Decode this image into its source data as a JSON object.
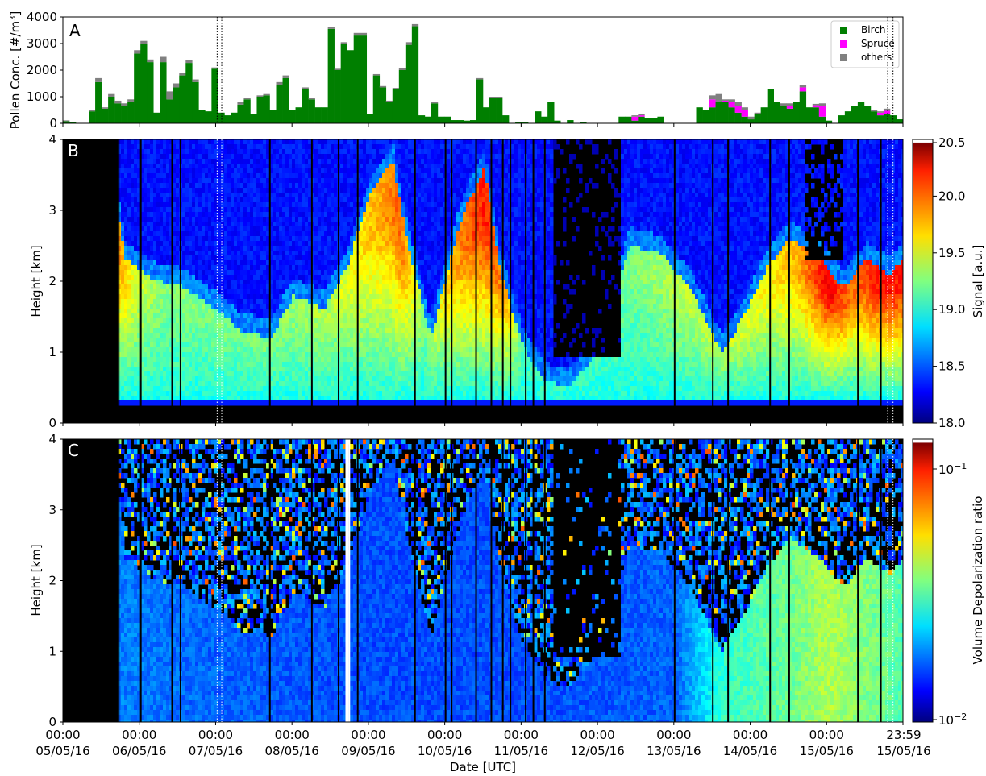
{
  "figure": {
    "xlabel": "Date [UTC]",
    "x_ticks": [
      {
        "time": "00:00",
        "date": "05/05/16"
      },
      {
        "time": "00:00",
        "date": "06/05/16"
      },
      {
        "time": "00:00",
        "date": "07/05/16"
      },
      {
        "time": "00:00",
        "date": "08/05/16"
      },
      {
        "time": "00:00",
        "date": "09/05/16"
      },
      {
        "time": "00:00",
        "date": "10/05/16"
      },
      {
        "time": "00:00",
        "date": "11/05/16"
      },
      {
        "time": "00:00",
        "date": "12/05/16"
      },
      {
        "time": "00:00",
        "date": "13/05/16"
      },
      {
        "time": "00:00",
        "date": "14/05/16"
      },
      {
        "time": "00:00",
        "date": "15/05/16"
      },
      {
        "time": "23:59",
        "date": "15/05/16"
      }
    ]
  },
  "chart_data": [
    {
      "panel_label": "A",
      "type": "bar",
      "stacked": true,
      "ylabel_text": "Pollen Conc. [#/m",
      "ylabel_sup": "3",
      "ylabel_end": "]",
      "ylim": [
        0,
        4000
      ],
      "y_ticks": [
        "0",
        "1000",
        "2000",
        "3000",
        "4000"
      ],
      "x_units": "days since 05/05/16 00:00 UTC",
      "bin_hours": 2,
      "colors": {
        "Birch": "#007f00",
        "Spruce": "#ff00ff",
        "others": "#808080"
      },
      "legend": {
        "placement": "top-right",
        "entries": [
          "Birch",
          "Spruce",
          "others"
        ]
      },
      "series": [
        {
          "name": "Birch",
          "values": [
            80,
            40,
            0,
            0,
            450,
            1550,
            550,
            1000,
            750,
            650,
            820,
            2620,
            3000,
            2300,
            400,
            2300,
            900,
            1350,
            1800,
            2270,
            1550,
            500,
            450,
            2050,
            400,
            300,
            400,
            700,
            900,
            350,
            1000,
            1050,
            500,
            1450,
            1700,
            500,
            600,
            1300,
            900,
            600,
            600,
            3550,
            2000,
            3000,
            2750,
            3300,
            3300,
            350,
            1800,
            1350,
            800,
            1280,
            2000,
            2950,
            3650,
            300,
            250,
            750,
            250,
            250,
            120,
            120,
            100,
            120,
            1650,
            600,
            950,
            950,
            300,
            0,
            60,
            60,
            0,
            450,
            250,
            800,
            100,
            0,
            120,
            0,
            50,
            0,
            0,
            0,
            0,
            0,
            250,
            250,
            100,
            250,
            200,
            200,
            250,
            0,
            0,
            0,
            0,
            0,
            600,
            500,
            600,
            800,
            800,
            600,
            400,
            250,
            150,
            350,
            600,
            1300,
            800,
            650,
            550,
            800,
            1200,
            600,
            600,
            250,
            100,
            0,
            300,
            450,
            650,
            800,
            650,
            450,
            300,
            350,
            300,
            150
          ]
        },
        {
          "name": "Spruce",
          "values": [
            0,
            0,
            0,
            0,
            0,
            0,
            0,
            0,
            0,
            0,
            0,
            0,
            0,
            0,
            0,
            0,
            0,
            0,
            0,
            0,
            0,
            0,
            0,
            0,
            0,
            0,
            0,
            0,
            0,
            0,
            0,
            0,
            0,
            0,
            0,
            0,
            0,
            0,
            0,
            0,
            0,
            0,
            0,
            0,
            0,
            0,
            0,
            0,
            0,
            0,
            0,
            0,
            0,
            0,
            0,
            0,
            0,
            0,
            0,
            0,
            0,
            0,
            0,
            0,
            0,
            0,
            0,
            0,
            0,
            0,
            0,
            0,
            0,
            0,
            0,
            0,
            0,
            0,
            0,
            0,
            0,
            0,
            0,
            0,
            0,
            0,
            0,
            0,
            150,
            50,
            0,
            0,
            0,
            0,
            0,
            0,
            0,
            0,
            0,
            0,
            300,
            0,
            50,
            200,
            250,
            250,
            0,
            0,
            0,
            0,
            0,
            0,
            100,
            0,
            150,
            0,
            80,
            400,
            0,
            0,
            0,
            0,
            0,
            0,
            0,
            0,
            100,
            120,
            0,
            0,
            0,
            100
          ]
        },
        {
          "name": "others",
          "values": [
            30,
            20,
            0,
            0,
            50,
            150,
            50,
            100,
            100,
            100,
            80,
            130,
            100,
            100,
            0,
            200,
            300,
            150,
            100,
            100,
            100,
            0,
            0,
            50,
            0,
            0,
            0,
            100,
            50,
            0,
            50,
            50,
            0,
            100,
            100,
            0,
            0,
            50,
            50,
            0,
            0,
            80,
            50,
            50,
            0,
            100,
            100,
            0,
            50,
            50,
            50,
            50,
            80,
            100,
            80,
            0,
            0,
            50,
            0,
            0,
            0,
            0,
            0,
            0,
            50,
            0,
            50,
            50,
            0,
            0,
            0,
            0,
            0,
            0,
            0,
            0,
            0,
            0,
            0,
            0,
            0,
            0,
            0,
            0,
            0,
            0,
            0,
            0,
            50,
            50,
            0,
            0,
            0,
            0,
            0,
            0,
            0,
            0,
            0,
            0,
            150,
            300,
            50,
            100,
            150,
            100,
            100,
            50,
            0,
            0,
            0,
            100,
            100,
            0,
            100,
            0,
            50,
            100,
            0,
            0,
            0,
            0,
            0,
            0,
            0,
            50,
            50,
            80,
            0,
            0,
            0,
            50
          ]
        }
      ]
    },
    {
      "panel_label": "B",
      "type": "heatmap",
      "ylabel": "Height [km]",
      "ylim": [
        0,
        4
      ],
      "y_ticks": [
        "0",
        "1",
        "2",
        "3",
        "4"
      ],
      "colorbar": {
        "label": "Signal [a.u.]",
        "range": [
          18.0,
          20.5
        ],
        "ticks": [
          "18.0",
          "18.5",
          "19.0",
          "19.5",
          "20.0",
          "20.5"
        ]
      }
    },
    {
      "panel_label": "C",
      "type": "heatmap",
      "ylabel": "Height [km]",
      "ylim": [
        0,
        4
      ],
      "y_ticks": [
        "0",
        "1",
        "2",
        "3",
        "4"
      ],
      "colorbar": {
        "label": "Volume Depolarization ratio",
        "scale": "log",
        "range": [
          0.01,
          0.15
        ],
        "ticks": [
          {
            "base": "10",
            "exp": "−1"
          },
          {
            "base": "10",
            "exp": "−2"
          }
        ]
      }
    }
  ],
  "markers": {
    "vertical_dotted_lines_days": [
      2.02,
      2.08,
      10.8,
      10.87
    ]
  }
}
